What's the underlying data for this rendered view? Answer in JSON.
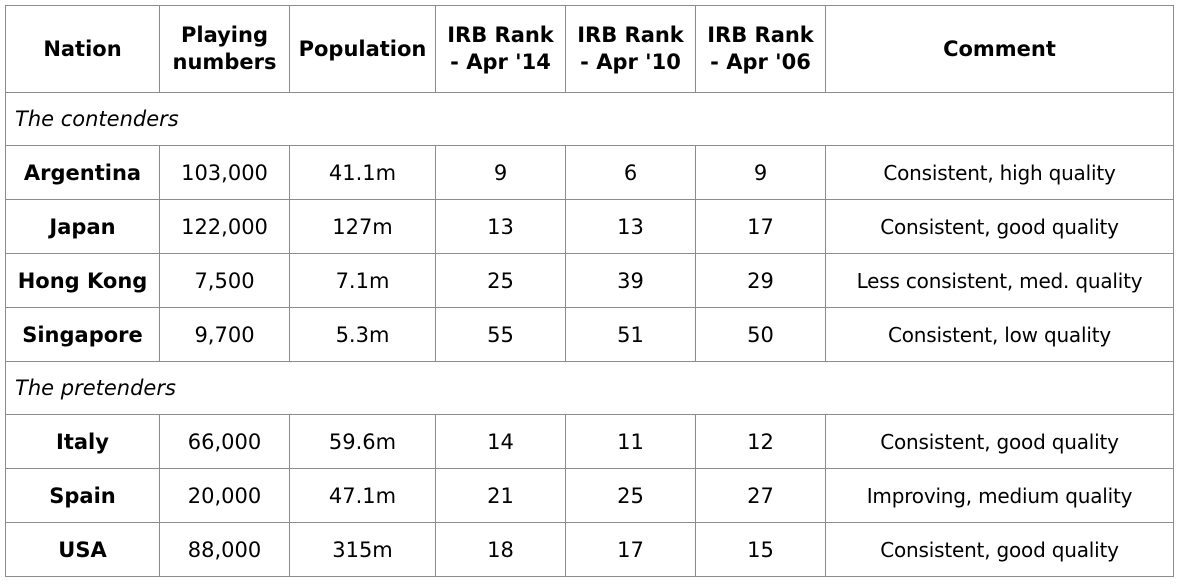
{
  "table": {
    "headers": {
      "nation": "Nation",
      "playing": [
        "Playing",
        "numbers"
      ],
      "population": "Population",
      "rank14": [
        "IRB Rank",
        "- Apr '14"
      ],
      "rank10": [
        "IRB Rank",
        "- Apr '10"
      ],
      "rank06": [
        "IRB Rank",
        "- Apr '06"
      ],
      "comment": "Comment"
    },
    "sections": [
      {
        "title": "The contenders",
        "rows": [
          {
            "nation": "Argentina",
            "playing": "103,000",
            "population": "41.1m",
            "rank14": "9",
            "rank10": "6",
            "rank06": "9",
            "comment": "Consistent, high quality"
          },
          {
            "nation": "Japan",
            "playing": "122,000",
            "population": "127m",
            "rank14": "13",
            "rank10": "13",
            "rank06": "17",
            "comment": "Consistent, good quality"
          },
          {
            "nation": "Hong Kong",
            "playing": "7,500",
            "population": "7.1m",
            "rank14": "25",
            "rank10": "39",
            "rank06": "29",
            "comment": "Less consistent, med. quality"
          },
          {
            "nation": "Singapore",
            "playing": "9,700",
            "population": "5.3m",
            "rank14": "55",
            "rank10": "51",
            "rank06": "50",
            "comment": "Consistent, low quality"
          }
        ]
      },
      {
        "title": "The pretenders",
        "rows": [
          {
            "nation": "Italy",
            "playing": "66,000",
            "population": "59.6m",
            "rank14": "14",
            "rank10": "11",
            "rank06": "12",
            "comment": "Consistent, good quality"
          },
          {
            "nation": "Spain",
            "playing": "20,000",
            "population": "47.1m",
            "rank14": "21",
            "rank10": "25",
            "rank06": "27",
            "comment": "Improving, medium quality"
          },
          {
            "nation": "USA",
            "playing": "88,000",
            "population": "315m",
            "rank14": "18",
            "rank10": "17",
            "rank06": "15",
            "comment": "Consistent, good quality"
          }
        ]
      }
    ]
  }
}
